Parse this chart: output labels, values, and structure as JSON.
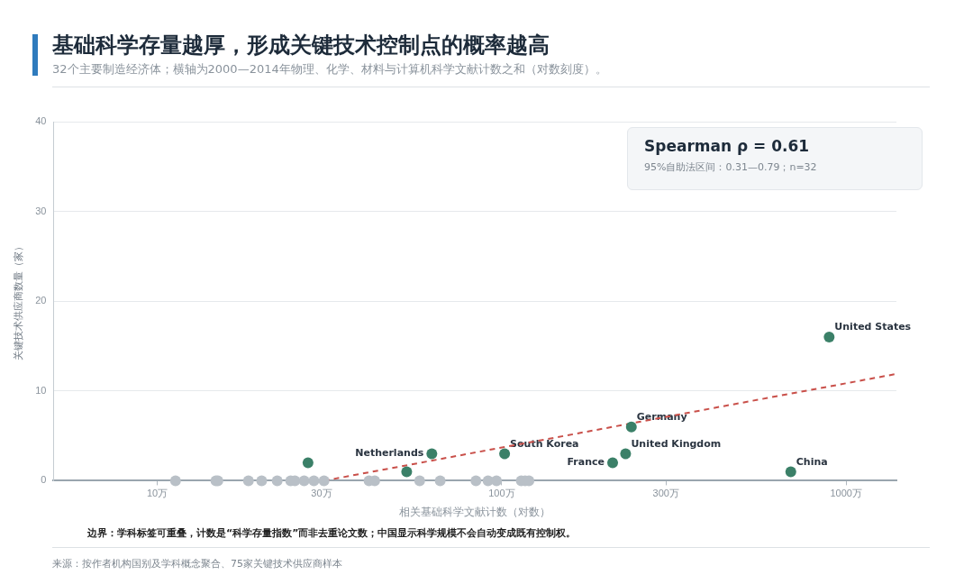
{
  "chart_data": {
    "type": "scatter",
    "title": "基础科学存量越厚，形成关键技术控制点的概率越高",
    "subtitle": "32个主要制造经济体；横轴为2000—2014年物理、化学、材料与计算机科学文献计数之和（对数刻度）。",
    "xlabel": "相关基础科学文献计数（对数）",
    "ylabel": "关键技术供应商数量（家）",
    "log": "x",
    "grid": "y",
    "marker": "circle",
    "xlim": [
      5,
      1400
    ],
    "xticks": [
      {
        "value": 10,
        "label": "10万"
      },
      {
        "value": 30,
        "label": "30万"
      },
      {
        "value": 100,
        "label": "100万"
      },
      {
        "value": 300,
        "label": "300万"
      },
      {
        "value": 1000,
        "label": "1000万"
      }
    ],
    "ylim": [
      0,
      40
    ],
    "yticks": [
      0,
      10,
      20,
      30,
      40
    ],
    "series": [
      {
        "x": [
          11.3,
          14.8,
          15,
          18.4,
          20.1,
          22.3,
          24.4,
          25.1,
          26.7,
          28.5,
          30.5,
          41.2,
          42.8,
          57.8,
          66.3,
          84.2,
          91.3,
          96.6,
          114,
          117,
          120,
          27.4,
          53,
          62.7,
          102,
          210,
          229,
          238,
          691,
          893
        ],
        "values": [
          0,
          0,
          0,
          0,
          0,
          0,
          0,
          0,
          0,
          0,
          0,
          0,
          0,
          0,
          0,
          0,
          0,
          0,
          0,
          0,
          0,
          2,
          1,
          3,
          3,
          2,
          3,
          6,
          1,
          16
        ],
        "colors": [
          "#b9c0c7",
          "#b9c0c7",
          "#b9c0c7",
          "#b9c0c7",
          "#b9c0c7",
          "#b9c0c7",
          "#b9c0c7",
          "#b9c0c7",
          "#b9c0c7",
          "#b9c0c7",
          "#b9c0c7",
          "#b9c0c7",
          "#b9c0c7",
          "#b9c0c7",
          "#b9c0c7",
          "#b9c0c7",
          "#b9c0c7",
          "#b9c0c7",
          "#b9c0c7",
          "#b9c0c7",
          "#b9c0c7",
          "#3b8068",
          "#3b8068",
          "#3b8068",
          "#3b8068",
          "#3b8068",
          "#3b8068",
          "#3b8068",
          "#3b8068",
          "#3b8068"
        ]
      },
      {
        "type": "line",
        "x": [
          30.5,
          1400
        ],
        "values": [
          0,
          11.9
        ],
        "color": "#c9504a",
        "line_style": "dashed",
        "marker": "none"
      }
    ],
    "annotations": [
      {
        "text": "Netherlands",
        "x": 62.7,
        "y": 3
      },
      {
        "text": "South Korea",
        "x": 102,
        "y": 3
      },
      {
        "text": "France",
        "x": 210,
        "y": 2
      },
      {
        "text": "United Kingdom",
        "x": 229,
        "y": 3
      },
      {
        "text": "Germany",
        "x": 238,
        "y": 6
      },
      {
        "text": "China",
        "x": 691,
        "y": 1
      },
      {
        "text": "United States",
        "x": 893,
        "y": 16
      },
      "Spearman ρ = 0.61",
      "95%自助法区间：0.31—0.79；n=32",
      "边界：学科标签可重叠，计数是“科学存量指数”而非去重论文数；中国显示科学规模不会自动变成既有控制权。",
      "来源：按作者机构国别及学科概念聚合、75家关键技术供应商样本"
    ]
  }
}
